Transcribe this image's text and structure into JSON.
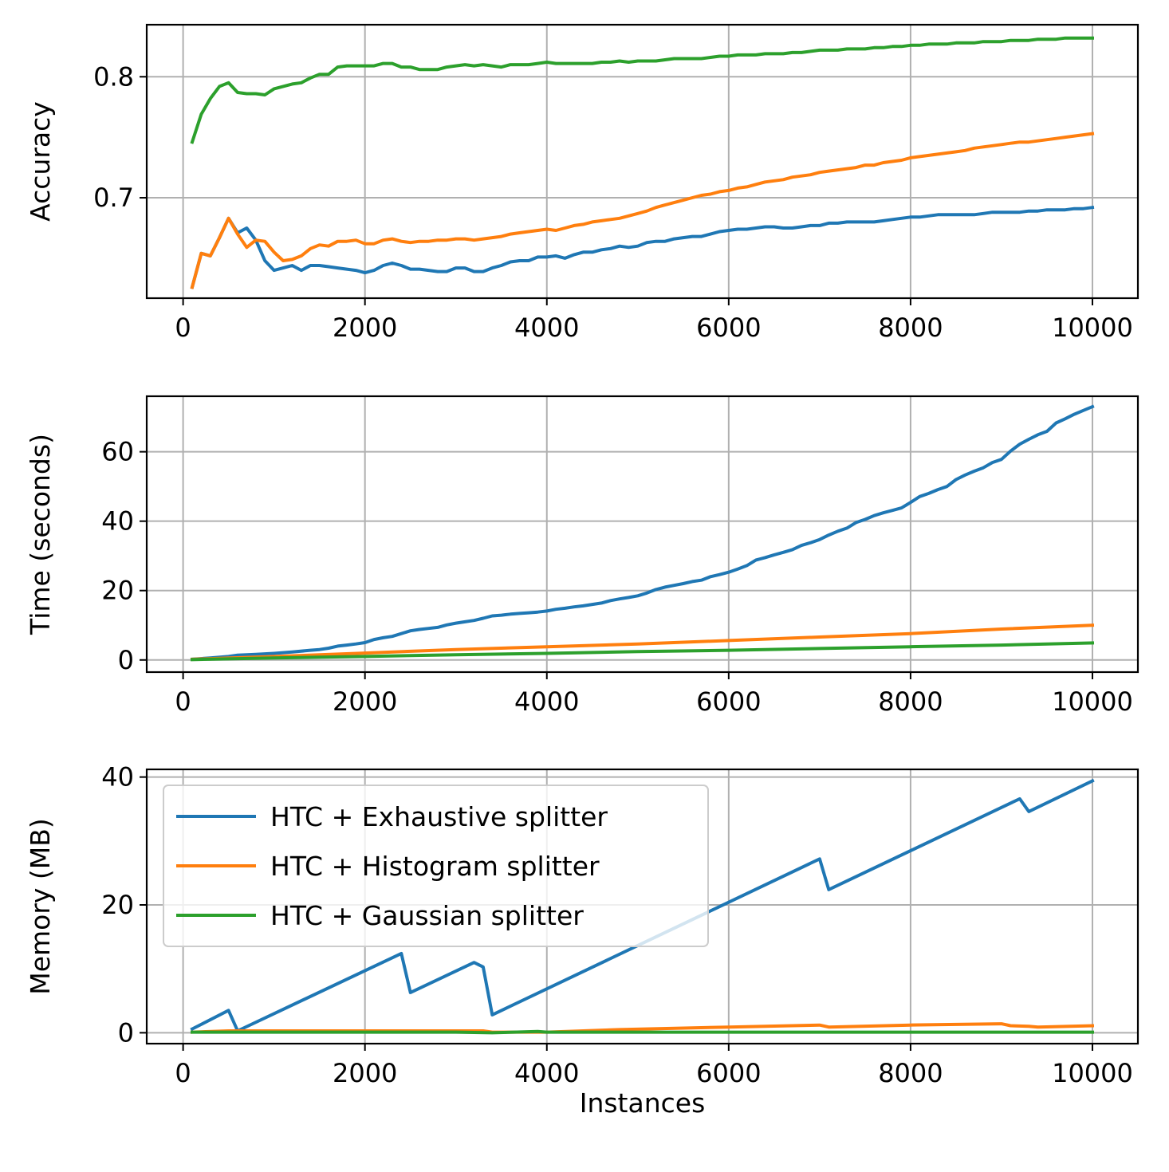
{
  "chart_data": [
    {
      "type": "line",
      "xlabel": "",
      "ylabel": "Accuracy",
      "xlim": [
        -400,
        10500
      ],
      "ylim": [
        0.617,
        0.843
      ],
      "xticks": [
        0,
        2000,
        4000,
        6000,
        8000,
        10000
      ],
      "yticks": [
        0.7,
        0.8
      ],
      "ytick_format": 1,
      "grid": true,
      "series": [
        {
          "name": "HTC + Exhaustive splitter",
          "color": "#1f77b4",
          "x": [
            100,
            200,
            300,
            400,
            500,
            600,
            700,
            800,
            900,
            1000,
            1100,
            1200,
            1300,
            1400,
            1500,
            1600,
            1700,
            1800,
            1900,
            2000,
            2100,
            2200,
            2300,
            2400,
            2500,
            2600,
            2700,
            2800,
            2900,
            3000,
            3100,
            3200,
            3300,
            3400,
            3500,
            3600,
            3700,
            3800,
            3900,
            4000,
            4100,
            4200,
            4300,
            4400,
            4500,
            4600,
            4700,
            4800,
            4900,
            5000,
            5100,
            5200,
            5300,
            5400,
            5500,
            5600,
            5700,
            5800,
            5900,
            6000,
            6100,
            6200,
            6300,
            6400,
            6500,
            6600,
            6700,
            6800,
            6900,
            7000,
            7100,
            7200,
            7300,
            7400,
            7500,
            7600,
            7700,
            7800,
            7900,
            8000,
            8100,
            8200,
            8300,
            8400,
            8500,
            8600,
            8700,
            8800,
            8900,
            9000,
            9100,
            9200,
            9300,
            9400,
            9500,
            9600,
            9700,
            9800,
            9900,
            10000
          ],
          "y": [
            0.626,
            0.654,
            0.652,
            0.667,
            0.683,
            0.671,
            0.675,
            0.665,
            0.648,
            0.64,
            0.642,
            0.644,
            0.64,
            0.644,
            0.644,
            0.643,
            0.642,
            0.641,
            0.64,
            0.638,
            0.64,
            0.644,
            0.646,
            0.644,
            0.641,
            0.641,
            0.64,
            0.639,
            0.639,
            0.642,
            0.642,
            0.639,
            0.639,
            0.642,
            0.644,
            0.647,
            0.648,
            0.648,
            0.651,
            0.651,
            0.652,
            0.65,
            0.653,
            0.655,
            0.655,
            0.657,
            0.658,
            0.66,
            0.659,
            0.66,
            0.663,
            0.664,
            0.664,
            0.666,
            0.667,
            0.668,
            0.668,
            0.67,
            0.672,
            0.673,
            0.674,
            0.674,
            0.675,
            0.676,
            0.676,
            0.675,
            0.675,
            0.676,
            0.677,
            0.677,
            0.679,
            0.679,
            0.68,
            0.68,
            0.68,
            0.68,
            0.681,
            0.682,
            0.683,
            0.684,
            0.684,
            0.685,
            0.686,
            0.686,
            0.686,
            0.686,
            0.686,
            0.687,
            0.688,
            0.688,
            0.688,
            0.688,
            0.689,
            0.689,
            0.69,
            0.69,
            0.69,
            0.691,
            0.691,
            0.692
          ]
        },
        {
          "name": "HTC + Histogram splitter",
          "color": "#ff7f0e",
          "x": [
            100,
            200,
            300,
            400,
            500,
            600,
            700,
            800,
            900,
            1000,
            1100,
            1200,
            1300,
            1400,
            1500,
            1600,
            1700,
            1800,
            1900,
            2000,
            2100,
            2200,
            2300,
            2400,
            2500,
            2600,
            2700,
            2800,
            2900,
            3000,
            3100,
            3200,
            3300,
            3400,
            3500,
            3600,
            3700,
            3800,
            3900,
            4000,
            4100,
            4200,
            4300,
            4400,
            4500,
            4600,
            4700,
            4800,
            4900,
            5000,
            5100,
            5200,
            5300,
            5400,
            5500,
            5600,
            5700,
            5800,
            5900,
            6000,
            6100,
            6200,
            6300,
            6400,
            6500,
            6600,
            6700,
            6800,
            6900,
            7000,
            7100,
            7200,
            7300,
            7400,
            7500,
            7600,
            7700,
            7800,
            7900,
            8000,
            8100,
            8200,
            8300,
            8400,
            8500,
            8600,
            8700,
            8800,
            8900,
            9000,
            9100,
            9200,
            9300,
            9400,
            9500,
            9600,
            9700,
            9800,
            9900,
            10000
          ],
          "y": [
            0.626,
            0.654,
            0.652,
            0.667,
            0.683,
            0.67,
            0.659,
            0.665,
            0.664,
            0.655,
            0.648,
            0.649,
            0.652,
            0.658,
            0.661,
            0.66,
            0.664,
            0.664,
            0.665,
            0.662,
            0.662,
            0.665,
            0.666,
            0.664,
            0.663,
            0.664,
            0.664,
            0.665,
            0.665,
            0.666,
            0.666,
            0.665,
            0.666,
            0.667,
            0.668,
            0.67,
            0.671,
            0.672,
            0.673,
            0.674,
            0.673,
            0.675,
            0.677,
            0.678,
            0.68,
            0.681,
            0.682,
            0.683,
            0.685,
            0.687,
            0.689,
            0.692,
            0.694,
            0.696,
            0.698,
            0.7,
            0.702,
            0.703,
            0.705,
            0.706,
            0.708,
            0.709,
            0.711,
            0.713,
            0.714,
            0.715,
            0.717,
            0.718,
            0.719,
            0.721,
            0.722,
            0.723,
            0.724,
            0.725,
            0.727,
            0.727,
            0.729,
            0.73,
            0.731,
            0.733,
            0.734,
            0.735,
            0.736,
            0.737,
            0.738,
            0.739,
            0.741,
            0.742,
            0.743,
            0.744,
            0.745,
            0.746,
            0.746,
            0.747,
            0.748,
            0.749,
            0.75,
            0.751,
            0.752,
            0.753
          ]
        },
        {
          "name": "HTC + Gaussian splitter",
          "color": "#2ca02c",
          "x": [
            100,
            200,
            300,
            400,
            500,
            600,
            700,
            800,
            900,
            1000,
            1100,
            1200,
            1300,
            1400,
            1500,
            1600,
            1700,
            1800,
            1900,
            2000,
            2100,
            2200,
            2300,
            2400,
            2500,
            2600,
            2700,
            2800,
            2900,
            3000,
            3100,
            3200,
            3300,
            3400,
            3500,
            3600,
            3700,
            3800,
            3900,
            4000,
            4100,
            4200,
            4300,
            4400,
            4500,
            4600,
            4700,
            4800,
            4900,
            5000,
            5100,
            5200,
            5300,
            5400,
            5500,
            5600,
            5700,
            5800,
            5900,
            6000,
            6100,
            6200,
            6300,
            6400,
            6500,
            6600,
            6700,
            6800,
            6900,
            7000,
            7100,
            7200,
            7300,
            7400,
            7500,
            7600,
            7700,
            7800,
            7900,
            8000,
            8100,
            8200,
            8300,
            8400,
            8500,
            8600,
            8700,
            8800,
            8900,
            9000,
            9100,
            9200,
            9300,
            9400,
            9500,
            9600,
            9700,
            9800,
            9900,
            10000
          ],
          "y": [
            0.746,
            0.769,
            0.782,
            0.792,
            0.795,
            0.787,
            0.786,
            0.786,
            0.785,
            0.79,
            0.792,
            0.794,
            0.795,
            0.799,
            0.802,
            0.802,
            0.808,
            0.809,
            0.809,
            0.809,
            0.809,
            0.811,
            0.811,
            0.808,
            0.808,
            0.806,
            0.806,
            0.806,
            0.808,
            0.809,
            0.81,
            0.809,
            0.81,
            0.809,
            0.808,
            0.81,
            0.81,
            0.81,
            0.811,
            0.812,
            0.811,
            0.811,
            0.811,
            0.811,
            0.811,
            0.812,
            0.812,
            0.813,
            0.812,
            0.813,
            0.813,
            0.813,
            0.814,
            0.815,
            0.815,
            0.815,
            0.815,
            0.816,
            0.817,
            0.817,
            0.818,
            0.818,
            0.818,
            0.819,
            0.819,
            0.819,
            0.82,
            0.82,
            0.821,
            0.822,
            0.822,
            0.822,
            0.823,
            0.823,
            0.823,
            0.824,
            0.824,
            0.825,
            0.825,
            0.826,
            0.826,
            0.827,
            0.827,
            0.827,
            0.828,
            0.828,
            0.828,
            0.829,
            0.829,
            0.829,
            0.83,
            0.83,
            0.83,
            0.831,
            0.831,
            0.831,
            0.832,
            0.832,
            0.832,
            0.832
          ]
        }
      ]
    },
    {
      "type": "line",
      "xlabel": "",
      "ylabel": "Time (seconds)",
      "xlim": [
        -400,
        10500
      ],
      "ylim": [
        -3.5,
        76
      ],
      "xticks": [
        0,
        2000,
        4000,
        6000,
        8000,
        10000
      ],
      "yticks": [
        0,
        20,
        40,
        60
      ],
      "ytick_format": 0,
      "grid": true,
      "series": [
        {
          "name": "HTC + Exhaustive splitter",
          "color": "#1f77b4",
          "x": [
            100,
            300,
            500,
            600,
            800,
            1000,
            1200,
            1400,
            1500,
            1600,
            1700,
            1800,
            1900,
            2000,
            2100,
            2200,
            2300,
            2400,
            2500,
            2600,
            2700,
            2800,
            2900,
            3000,
            3100,
            3200,
            3300,
            3400,
            3500,
            3600,
            3700,
            3800,
            3900,
            4000,
            4100,
            4200,
            4300,
            4400,
            4500,
            4600,
            4700,
            4800,
            4900,
            5000,
            5100,
            5200,
            5300,
            5400,
            5500,
            5600,
            5700,
            5800,
            5900,
            6000,
            6100,
            6200,
            6300,
            6400,
            6500,
            6600,
            6700,
            6800,
            6900,
            7000,
            7100,
            7200,
            7300,
            7400,
            7500,
            7600,
            7700,
            7800,
            7900,
            8000,
            8100,
            8200,
            8300,
            8400,
            8500,
            8600,
            8700,
            8800,
            8900,
            9000,
            9100,
            9200,
            9300,
            9400,
            9500,
            9600,
            9700,
            9800,
            9900,
            10000
          ],
          "y": [
            0.2,
            0.6,
            1.0,
            1.4,
            1.6,
            1.9,
            2.3,
            2.8,
            3.0,
            3.4,
            4.0,
            4.3,
            4.6,
            5.0,
            5.9,
            6.4,
            6.8,
            7.6,
            8.4,
            8.8,
            9.1,
            9.4,
            10.1,
            10.6,
            11.0,
            11.4,
            12.0,
            12.7,
            12.9,
            13.2,
            13.4,
            13.6,
            13.8,
            14.1,
            14.6,
            14.9,
            15.3,
            15.6,
            16.0,
            16.4,
            17.1,
            17.6,
            18.0,
            18.5,
            19.3,
            20.3,
            21.0,
            21.5,
            22.0,
            22.6,
            23.0,
            24.0,
            24.6,
            25.3,
            26.2,
            27.2,
            28.8,
            29.5,
            30.3,
            31.0,
            31.8,
            33.0,
            33.8,
            34.7,
            36.0,
            37.1,
            38.0,
            39.6,
            40.5,
            41.6,
            42.4,
            43.1,
            43.8,
            45.4,
            47.1,
            48.0,
            49.1,
            50.0,
            52.0,
            53.3,
            54.4,
            55.4,
            56.9,
            57.8,
            60.2,
            62.2,
            63.6,
            64.9,
            65.9,
            68.3,
            69.5,
            70.8,
            71.9,
            73.0
          ]
        },
        {
          "name": "HTC + Histogram splitter",
          "color": "#ff7f0e",
          "x": [
            100,
            1000,
            2000,
            3000,
            4000,
            5000,
            6000,
            7000,
            8000,
            9000,
            10000
          ],
          "y": [
            0.2,
            1.0,
            2.0,
            3.0,
            3.8,
            4.6,
            5.6,
            6.6,
            7.6,
            8.9,
            10.0
          ]
        },
        {
          "name": "HTC + Gaussian splitter",
          "color": "#2ca02c",
          "x": [
            100,
            1000,
            2000,
            3000,
            4000,
            5000,
            6000,
            7000,
            8000,
            9000,
            10000
          ],
          "y": [
            0.1,
            0.6,
            1.0,
            1.5,
            1.9,
            2.4,
            2.8,
            3.3,
            3.8,
            4.3,
            4.9
          ]
        }
      ]
    },
    {
      "type": "line",
      "xlabel": "Instances",
      "ylabel": "Memory (MB)",
      "xlim": [
        -400,
        10500
      ],
      "ylim": [
        -1.7,
        41.2
      ],
      "xticks": [
        0,
        2000,
        4000,
        6000,
        8000,
        10000
      ],
      "yticks": [
        0,
        20,
        40
      ],
      "ytick_format": 0,
      "grid": true,
      "legend": "upper-left",
      "series": [
        {
          "name": "HTC + Exhaustive splitter",
          "color": "#1f77b4",
          "x": [
            100,
            500,
            600,
            2400,
            2500,
            3200,
            3300,
            3400,
            7000,
            7100,
            9200,
            9300,
            10000
          ],
          "y": [
            0.6,
            3.5,
            0.3,
            12.4,
            6.3,
            11.0,
            10.3,
            2.8,
            27.2,
            22.4,
            36.6,
            34.6,
            39.4
          ]
        },
        {
          "name": "HTC + Histogram splitter",
          "color": "#ff7f0e",
          "x": [
            100,
            500,
            1000,
            2000,
            3000,
            3300,
            3400,
            4000,
            4800,
            6000,
            7000,
            7100,
            8000,
            9000,
            9100,
            9300,
            9400,
            10000
          ],
          "y": [
            0.1,
            0.3,
            0.3,
            0.3,
            0.3,
            0.3,
            0.1,
            0.1,
            0.5,
            0.9,
            1.2,
            0.9,
            1.2,
            1.4,
            1.1,
            1.0,
            0.9,
            1.1
          ]
        },
        {
          "name": "HTC + Gaussian splitter",
          "color": "#2ca02c",
          "x": [
            100,
            1000,
            2000,
            3000,
            3400,
            3900,
            4000,
            5000,
            6000,
            7000,
            8000,
            9000,
            10000
          ],
          "y": [
            0.1,
            0.1,
            0.1,
            0.1,
            0.0,
            0.2,
            0.1,
            0.1,
            0.1,
            0.1,
            0.1,
            0.1,
            0.1
          ]
        }
      ]
    }
  ]
}
